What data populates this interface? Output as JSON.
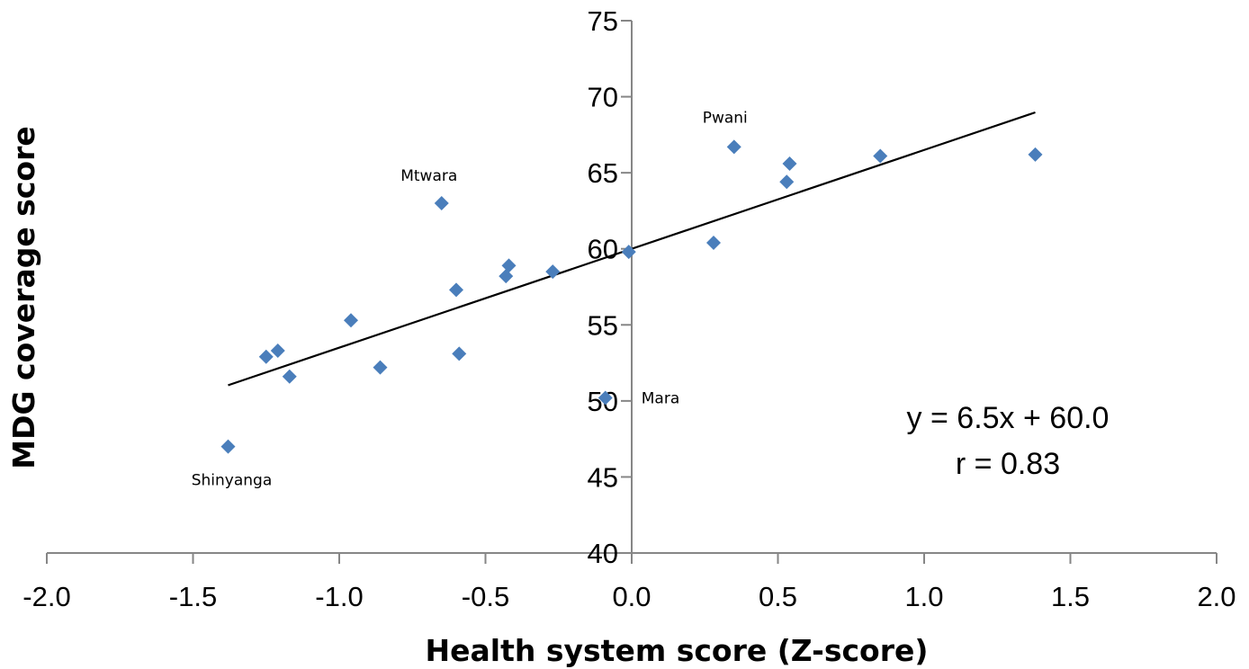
{
  "chart_data": {
    "type": "scatter",
    "title": "",
    "xlabel": "Health system score (Z-score)",
    "ylabel": "MDG coverage score",
    "xlim": [
      -2.0,
      2.0
    ],
    "ylim": [
      40,
      75
    ],
    "x_ticks": [
      -2.0,
      -1.5,
      -1.0,
      -0.5,
      0.0,
      0.5,
      1.0,
      1.5,
      2.0
    ],
    "x_tick_labels": [
      "-2.0",
      "-1.5",
      "-1.0",
      "-0.5",
      "0.0",
      "0.5",
      "1.0",
      "1.5",
      "2.0"
    ],
    "y_ticks": [
      40,
      45,
      50,
      55,
      60,
      65,
      70,
      75
    ],
    "y_tick_labels": [
      "40",
      "45",
      "50",
      "55",
      "60",
      "65",
      "70",
      "75"
    ],
    "grid": false,
    "marker": "diamond",
    "marker_color": "#4a7ebb",
    "trendline_color": "#000000",
    "axis_color": "#868686",
    "series": [
      {
        "points": [
          {
            "x": -1.38,
            "y": 47.0
          },
          {
            "x": -1.25,
            "y": 52.9
          },
          {
            "x": -1.21,
            "y": 53.3
          },
          {
            "x": -1.17,
            "y": 51.6
          },
          {
            "x": -0.96,
            "y": 55.3
          },
          {
            "x": -0.86,
            "y": 52.2
          },
          {
            "x": -0.65,
            "y": 63.0
          },
          {
            "x": -0.6,
            "y": 57.3
          },
          {
            "x": -0.59,
            "y": 53.1
          },
          {
            "x": -0.43,
            "y": 58.2
          },
          {
            "x": -0.42,
            "y": 58.9
          },
          {
            "x": -0.27,
            "y": 58.5
          },
          {
            "x": -0.09,
            "y": 50.2
          },
          {
            "x": -0.01,
            "y": 59.8
          },
          {
            "x": 0.28,
            "y": 60.4
          },
          {
            "x": 0.35,
            "y": 66.7
          },
          {
            "x": 0.53,
            "y": 64.4
          },
          {
            "x": 0.54,
            "y": 65.6
          },
          {
            "x": 0.85,
            "y": 66.1
          },
          {
            "x": 1.38,
            "y": 66.2
          }
        ]
      }
    ],
    "trendline": {
      "slope": 6.5,
      "intercept": 60.0,
      "x_range": [
        -1.38,
        1.38
      ]
    },
    "point_labels": [
      {
        "text": "Shinyanga",
        "x": -1.38,
        "y": 47.0
      },
      {
        "text": "Mtwara",
        "x": -0.65,
        "y": 63.0
      },
      {
        "text": "Mara",
        "x": -0.09,
        "y": 50.2
      },
      {
        "text": "Pwani",
        "x": 0.35,
        "y": 66.7
      }
    ],
    "equation": {
      "line1": "y = 6.5x + 60.0",
      "line2": "r = 0.83",
      "placement": "bottom-right"
    }
  }
}
